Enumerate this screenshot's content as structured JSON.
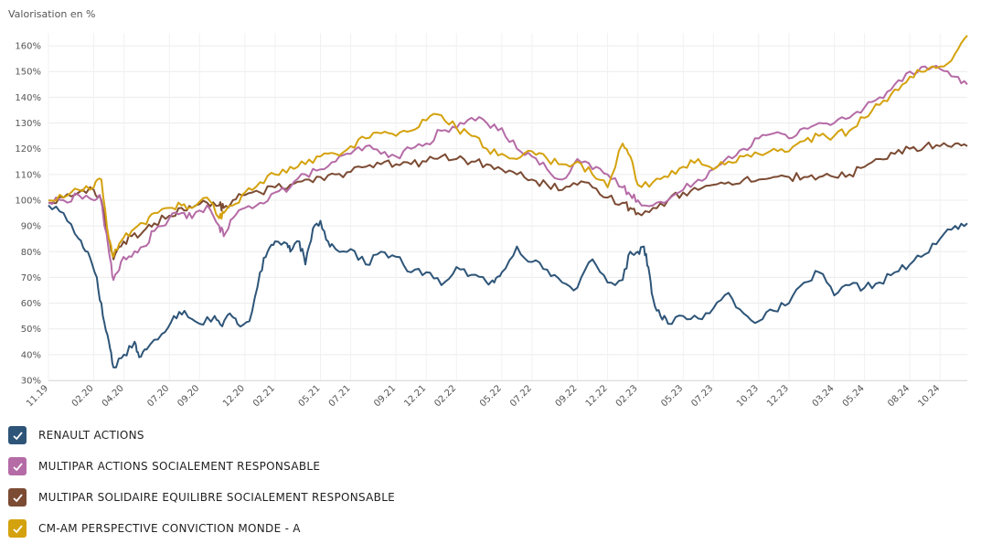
{
  "chart_data": {
    "type": "line",
    "title": "",
    "ylabel": "Valorisation en %",
    "xlabel": "",
    "ylim": [
      30,
      165
    ],
    "yticks": [
      30,
      40,
      50,
      60,
      70,
      80,
      90,
      100,
      110,
      120,
      130,
      140,
      150,
      160
    ],
    "ytick_labels": [
      "30%",
      "40%",
      "50%",
      "60%",
      "70%",
      "80%",
      "90%",
      "100%",
      "110%",
      "120%",
      "130%",
      "140%",
      "150%",
      "160%"
    ],
    "x_range": [
      0,
      60.8
    ],
    "xticks": [
      0,
      3,
      5,
      8,
      10,
      13,
      15,
      18,
      20,
      23,
      25,
      27,
      30,
      32,
      35,
      37,
      39,
      42,
      44,
      47,
      49,
      52,
      54,
      57,
      59
    ],
    "xtick_labels": [
      "11.19",
      "02.20",
      "04.20",
      "07.20",
      "09.20",
      "12.20",
      "02.21",
      "05.21",
      "07.21",
      "09.21",
      "12.21",
      "02.22",
      "05.22",
      "07.22",
      "09.22",
      "12.22",
      "02.23",
      "05.23",
      "07.23",
      "10.23",
      "12.23",
      "03.24",
      "05.24",
      "08.24",
      "10.24"
    ],
    "grid": true,
    "legend_position": "bottom-left",
    "series": [
      {
        "name": "RENAULT ACTIONS",
        "color": "#2e5578",
        "points": [
          [
            0,
            98
          ],
          [
            1,
            95
          ],
          [
            2,
            85
          ],
          [
            2.6,
            80
          ],
          [
            3.2,
            70
          ],
          [
            3.6,
            55
          ],
          [
            4,
            45
          ],
          [
            4.3,
            35
          ],
          [
            5,
            40
          ],
          [
            5.7,
            45
          ],
          [
            6,
            39
          ],
          [
            6.5,
            42
          ],
          [
            7.5,
            48
          ],
          [
            8.3,
            55
          ],
          [
            9,
            57
          ],
          [
            10,
            52
          ],
          [
            11,
            55
          ],
          [
            11.5,
            51
          ],
          [
            12,
            56
          ],
          [
            12.5,
            52
          ],
          [
            13.3,
            53
          ],
          [
            14,
            72
          ],
          [
            14.5,
            80
          ],
          [
            15,
            84
          ],
          [
            15.8,
            83
          ],
          [
            16,
            80
          ],
          [
            16.6,
            84
          ],
          [
            17,
            75
          ],
          [
            17.5,
            89
          ],
          [
            18,
            92
          ],
          [
            18.5,
            84
          ],
          [
            19,
            81
          ],
          [
            20,
            81
          ],
          [
            21,
            75
          ],
          [
            22,
            80
          ],
          [
            23,
            78
          ],
          [
            24,
            72
          ],
          [
            25,
            72
          ],
          [
            26,
            67
          ],
          [
            27,
            74
          ],
          [
            28,
            71
          ],
          [
            29,
            68
          ],
          [
            29.5,
            68
          ],
          [
            30,
            72
          ],
          [
            31,
            82
          ],
          [
            32,
            76
          ],
          [
            33,
            73
          ],
          [
            34,
            68
          ],
          [
            35,
            66
          ],
          [
            36,
            77
          ],
          [
            37,
            68
          ],
          [
            38,
            69
          ],
          [
            38.5,
            80
          ],
          [
            39,
            80
          ],
          [
            39.4,
            82
          ],
          [
            39.7,
            74
          ],
          [
            40,
            62
          ],
          [
            40.5,
            55
          ],
          [
            41,
            52
          ],
          [
            42,
            55
          ],
          [
            43,
            54
          ],
          [
            44,
            58
          ],
          [
            45,
            64
          ],
          [
            46,
            56
          ],
          [
            47,
            53
          ],
          [
            48,
            57
          ],
          [
            49,
            60
          ],
          [
            50,
            68
          ],
          [
            51,
            72
          ],
          [
            52,
            63
          ],
          [
            53,
            67
          ],
          [
            54,
            66
          ],
          [
            55,
            68
          ],
          [
            56,
            72
          ],
          [
            57,
            75
          ],
          [
            58,
            79
          ],
          [
            59,
            85
          ],
          [
            60,
            90
          ],
          [
            60.8,
            91
          ]
        ]
      },
      {
        "name": "MULTIPAR ACTIONS SOCIALEMENT RESPONSABLE",
        "color": "#b56ba6",
        "points": [
          [
            0,
            99
          ],
          [
            1,
            100
          ],
          [
            2,
            102
          ],
          [
            3,
            100
          ],
          [
            3.4,
            102
          ],
          [
            4,
            80
          ],
          [
            4.3,
            69
          ],
          [
            4.8,
            76
          ],
          [
            5.5,
            78
          ],
          [
            6.3,
            82
          ],
          [
            7,
            88
          ],
          [
            8,
            93
          ],
          [
            8.8,
            95
          ],
          [
            9.5,
            93
          ],
          [
            10.5,
            98
          ],
          [
            11.3,
            90
          ],
          [
            11.6,
            86
          ],
          [
            12.2,
            93
          ],
          [
            13,
            97
          ],
          [
            14,
            99
          ],
          [
            15,
            103
          ],
          [
            16,
            105
          ],
          [
            17,
            110
          ],
          [
            18,
            112
          ],
          [
            19,
            115
          ],
          [
            20,
            118
          ],
          [
            21,
            121
          ],
          [
            22,
            118
          ],
          [
            23,
            117
          ],
          [
            24,
            120
          ],
          [
            25,
            122
          ],
          [
            26,
            127
          ],
          [
            27,
            128
          ],
          [
            28,
            132
          ],
          [
            29,
            130
          ],
          [
            30,
            128
          ],
          [
            31,
            120
          ],
          [
            32,
            117
          ],
          [
            33,
            112
          ],
          [
            34,
            108
          ],
          [
            35,
            116
          ],
          [
            36,
            112
          ],
          [
            37,
            110
          ],
          [
            38,
            105
          ],
          [
            38.5,
            102
          ],
          [
            39,
            100
          ],
          [
            40,
            98
          ],
          [
            41,
            100
          ],
          [
            42,
            104
          ],
          [
            43,
            108
          ],
          [
            44,
            112
          ],
          [
            45,
            117
          ],
          [
            46,
            120
          ],
          [
            47,
            124
          ],
          [
            48,
            126
          ],
          [
            49,
            124
          ],
          [
            50,
            128
          ],
          [
            51,
            130
          ],
          [
            52,
            130
          ],
          [
            53,
            132
          ],
          [
            54,
            136
          ],
          [
            55,
            140
          ],
          [
            56,
            145
          ],
          [
            57,
            150
          ],
          [
            58,
            152
          ],
          [
            59,
            151
          ],
          [
            60,
            148
          ],
          [
            60.8,
            145
          ]
        ]
      },
      {
        "name": "MULTIPAR SOLIDAIRE EQUILIBRE SOCIALEMENT RESPONSABLE",
        "color": "#7c4b33",
        "points": [
          [
            0,
            99
          ],
          [
            1,
            101
          ],
          [
            2,
            103
          ],
          [
            3,
            104
          ],
          [
            3.5,
            100
          ],
          [
            4,
            85
          ],
          [
            4.3,
            77
          ],
          [
            4.8,
            82
          ],
          [
            5.5,
            86
          ],
          [
            6.3,
            88
          ],
          [
            7,
            91
          ],
          [
            8,
            94
          ],
          [
            8.8,
            97
          ],
          [
            9.5,
            97
          ],
          [
            10.5,
            99
          ],
          [
            11.3,
            98
          ],
          [
            11.6,
            97
          ],
          [
            12.2,
            100
          ],
          [
            13,
            102
          ],
          [
            14,
            103
          ],
          [
            15,
            105
          ],
          [
            16,
            106
          ],
          [
            17,
            108
          ],
          [
            18,
            109
          ],
          [
            19,
            110
          ],
          [
            20,
            111
          ],
          [
            21,
            113
          ],
          [
            22,
            114
          ],
          [
            23,
            114
          ],
          [
            24,
            114
          ],
          [
            25,
            115
          ],
          [
            26,
            117
          ],
          [
            27,
            116
          ],
          [
            28,
            115
          ],
          [
            29,
            114
          ],
          [
            30,
            112
          ],
          [
            31,
            110
          ],
          [
            32,
            108
          ],
          [
            33,
            106
          ],
          [
            34,
            104
          ],
          [
            35,
            106
          ],
          [
            36,
            105
          ],
          [
            37,
            101
          ],
          [
            38,
            99
          ],
          [
            38.5,
            97
          ],
          [
            39,
            95
          ],
          [
            40,
            97
          ],
          [
            41,
            100
          ],
          [
            42,
            103
          ],
          [
            43,
            104
          ],
          [
            44,
            106
          ],
          [
            45,
            107
          ],
          [
            46,
            108
          ],
          [
            47,
            108
          ],
          [
            48,
            109
          ],
          [
            49,
            109
          ],
          [
            50,
            109
          ],
          [
            51,
            109
          ],
          [
            52,
            109
          ],
          [
            53,
            110
          ],
          [
            54,
            113
          ],
          [
            55,
            116
          ],
          [
            56,
            118
          ],
          [
            57,
            120
          ],
          [
            58,
            121
          ],
          [
            59,
            121
          ],
          [
            60,
            122
          ],
          [
            60.8,
            121
          ]
        ]
      },
      {
        "name": "CM-AM PERSPECTIVE CONVICTION MONDE - A",
        "color": "#d4a20e",
        "points": [
          [
            0,
            100
          ],
          [
            1,
            101
          ],
          [
            2,
            104
          ],
          [
            3,
            105
          ],
          [
            3.5,
            108
          ],
          [
            4,
            85
          ],
          [
            4.3,
            78
          ],
          [
            4.8,
            84
          ],
          [
            5.5,
            88
          ],
          [
            6.3,
            91
          ],
          [
            7,
            95
          ],
          [
            8,
            97
          ],
          [
            8.8,
            98
          ],
          [
            9.5,
            97
          ],
          [
            10.5,
            101
          ],
          [
            11.3,
            93
          ],
          [
            11.6,
            95
          ],
          [
            12.2,
            98
          ],
          [
            13,
            103
          ],
          [
            14,
            107
          ],
          [
            15,
            110
          ],
          [
            16,
            113
          ],
          [
            17,
            114
          ],
          [
            18,
            117
          ],
          [
            19,
            118
          ],
          [
            20,
            121
          ],
          [
            21,
            124
          ],
          [
            22,
            126
          ],
          [
            23,
            125
          ],
          [
            24,
            127
          ],
          [
            25,
            131
          ],
          [
            26,
            133
          ],
          [
            27,
            128
          ],
          [
            28,
            125
          ],
          [
            29,
            120
          ],
          [
            30,
            118
          ],
          [
            31,
            116
          ],
          [
            32,
            119
          ],
          [
            33,
            116
          ],
          [
            34,
            114
          ],
          [
            35,
            115
          ],
          [
            36,
            110
          ],
          [
            37,
            105
          ],
          [
            38,
            122
          ],
          [
            38.5,
            117
          ],
          [
            39,
            106
          ],
          [
            40,
            107
          ],
          [
            41,
            109
          ],
          [
            42,
            113
          ],
          [
            43,
            116
          ],
          [
            44,
            112
          ],
          [
            45,
            115
          ],
          [
            46,
            117
          ],
          [
            47,
            118
          ],
          [
            48,
            120
          ],
          [
            49,
            119
          ],
          [
            50,
            123
          ],
          [
            51,
            125
          ],
          [
            52,
            125
          ],
          [
            53,
            127
          ],
          [
            54,
            132
          ],
          [
            55,
            137
          ],
          [
            56,
            143
          ],
          [
            57,
            148
          ],
          [
            58,
            150
          ],
          [
            59,
            152
          ],
          [
            60,
            157
          ],
          [
            60.8,
            164
          ]
        ]
      }
    ]
  }
}
